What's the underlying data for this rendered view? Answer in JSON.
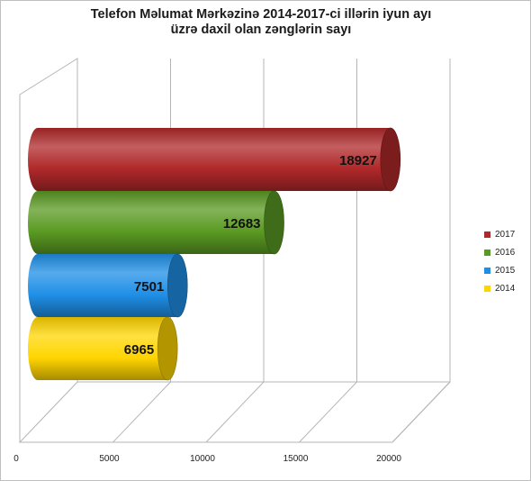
{
  "chart_data": {
    "type": "bar",
    "orientation": "horizontal",
    "style": "3d-cylinder",
    "title_lines": [
      "Telefon Məlumat Mərkəzinə  2014-2017-ci  illərin iyun ayı",
      "üzrə  daxil  olan zənglərin sayı"
    ],
    "categories": [
      "2014",
      "2015",
      "2016",
      "2017"
    ],
    "values": [
      6965,
      7501,
      12683,
      18927
    ],
    "colors": [
      "#ffd500",
      "#1f8fe6",
      "#5a9a22",
      "#b0282a"
    ],
    "xlim": [
      0,
      20000
    ],
    "xticks": [
      0,
      5000,
      10000,
      15000,
      20000
    ],
    "grid": true,
    "legend": {
      "position": "right",
      "entries": [
        "2017",
        "2016",
        "2015",
        "2014"
      ]
    }
  }
}
